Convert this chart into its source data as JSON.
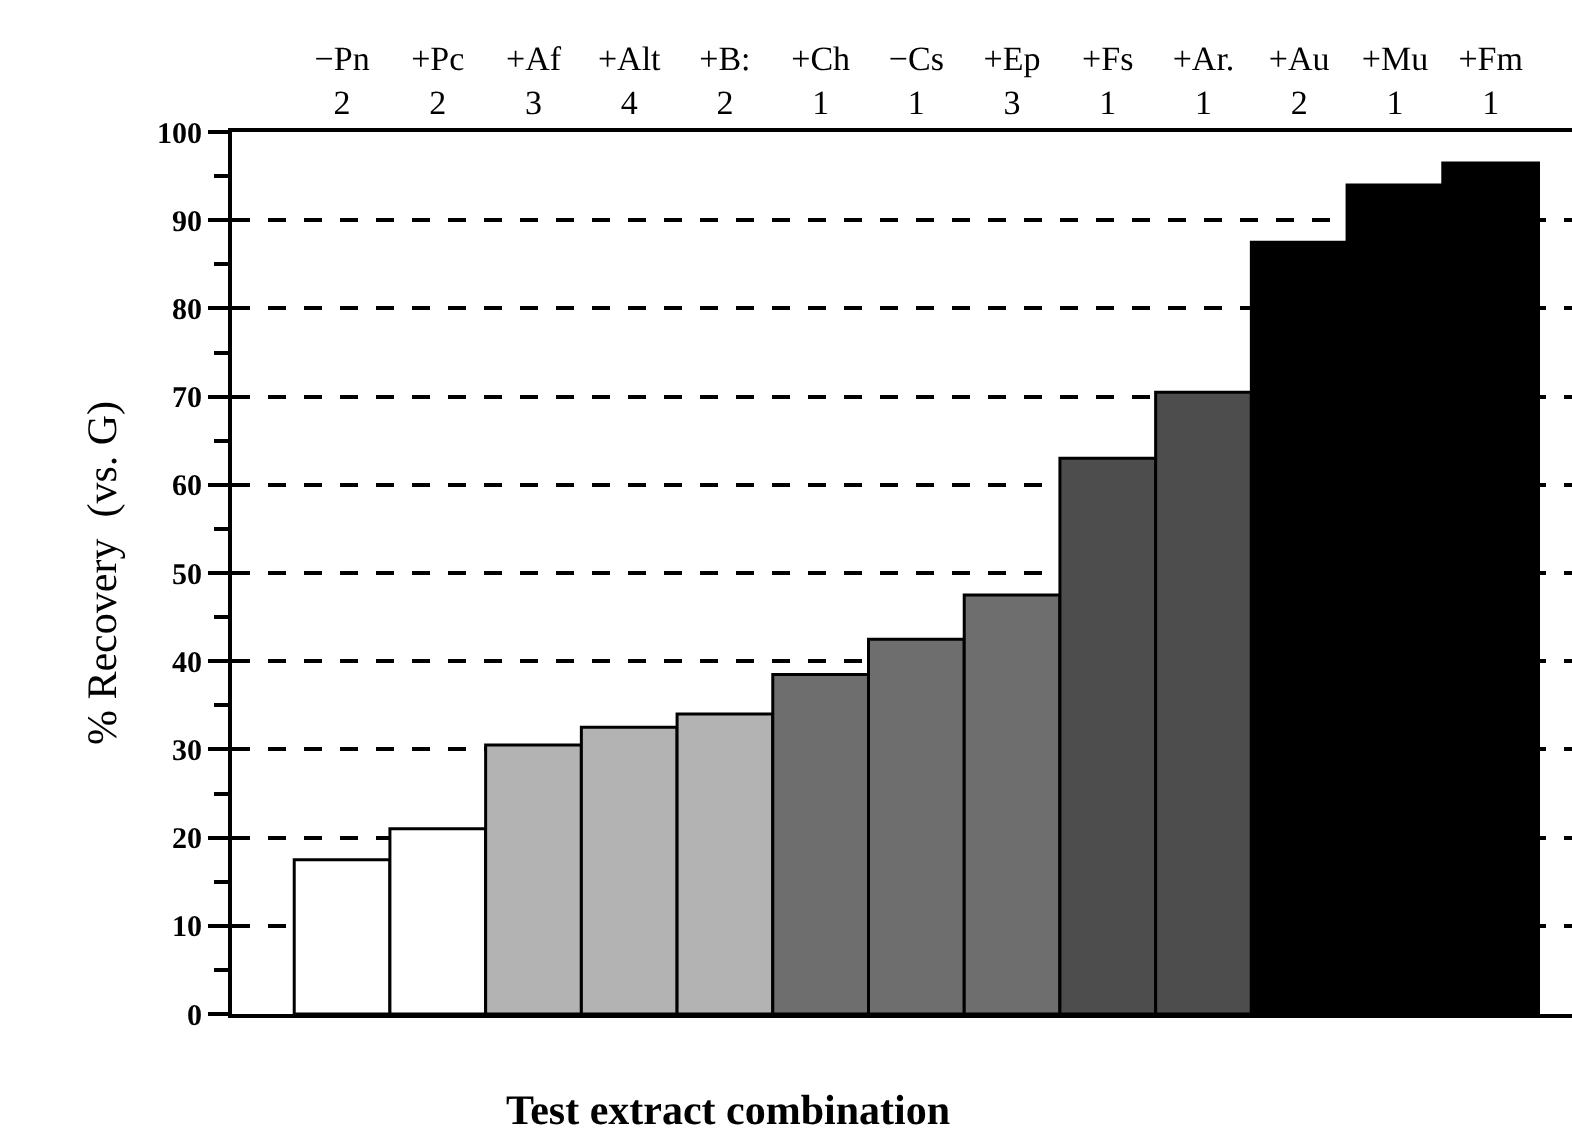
{
  "chart_data": {
    "type": "bar",
    "xlabel": "Test extract combination",
    "ylabel": "% Recovery  (vs. G)",
    "categories": [
      "−Pn\n2",
      "+Pc\n2",
      "+Af\n3",
      "+Alt\n4",
      "+B:\n2",
      "+Ch\n1",
      "−Cs\n1",
      "+Ep\n3",
      "+Fs\n1",
      "+Ar.\n1",
      "+Au\n2",
      "+Mu\n1",
      "+Fm\n1"
    ],
    "values": [
      17.5,
      21,
      30.5,
      32.5,
      34,
      38.5,
      42.5,
      47.5,
      63,
      70.5,
      87.5,
      94,
      96.5
    ],
    "colors": [
      "#ffffff",
      "#ffffff",
      "#b3b3b3",
      "#b3b3b3",
      "#b3b3b3",
      "#6e6e6e",
      "#6e6e6e",
      "#6e6e6e",
      "#4d4d4d",
      "#4d4d4d",
      "#000000",
      "#000000",
      "#000000"
    ],
    "ylim": [
      0,
      100
    ],
    "yticks": [
      0,
      10,
      20,
      30,
      40,
      50,
      60,
      70,
      80,
      90,
      100
    ],
    "grid": "y"
  }
}
